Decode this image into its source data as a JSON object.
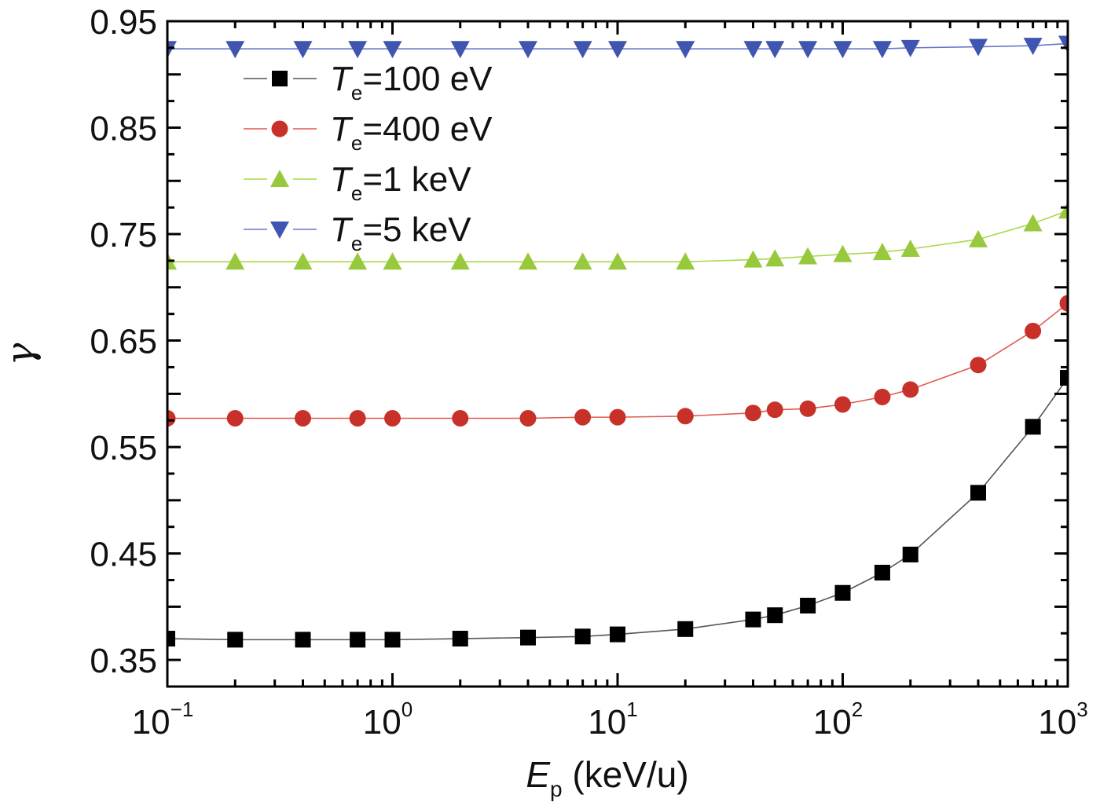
{
  "chart_data": {
    "type": "line",
    "title": "",
    "xlabel": {
      "symbol": "E",
      "subscript": "p",
      "unit": " (keV/u)"
    },
    "ylabel": "γ",
    "xscale": "log",
    "xlim": [
      0.1,
      1000
    ],
    "ylim": [
      0.325,
      0.95
    ],
    "x_ticks": [
      {
        "base": "10",
        "exp": "−1",
        "value": 0.1
      },
      {
        "base": "10",
        "exp": "0",
        "value": 1
      },
      {
        "base": "10",
        "exp": "1",
        "value": 10
      },
      {
        "base": "10",
        "exp": "2",
        "value": 100
      },
      {
        "base": "10",
        "exp": "3",
        "value": 1000
      }
    ],
    "y_ticks": [
      "0.35",
      "0.45",
      "0.55",
      "0.65",
      "0.75",
      "0.85",
      "0.95"
    ],
    "grid": false,
    "legend_position": "top-left",
    "x": [
      0.1,
      0.2,
      0.4,
      0.7,
      1,
      2,
      4,
      7,
      10,
      20,
      40,
      50,
      70,
      100,
      150,
      200,
      400,
      700,
      1000
    ],
    "series": [
      {
        "name": "Te=100 eV",
        "label_symbol": "T",
        "label_sub": "e",
        "label_rest": "=100 eV",
        "marker": "square",
        "color": "#000000",
        "line_color": "#555555",
        "values": [
          0.37,
          0.369,
          0.369,
          0.369,
          0.369,
          0.37,
          0.371,
          0.372,
          0.374,
          0.379,
          0.388,
          0.392,
          0.401,
          0.413,
          0.432,
          0.449,
          0.507,
          0.569,
          0.615
        ]
      },
      {
        "name": "Te=400 eV",
        "label_symbol": "T",
        "label_sub": "e",
        "label_rest": "=400 eV",
        "marker": "circle",
        "color": "#c8312a",
        "line_color": "#e05a50",
        "values": [
          0.577,
          0.577,
          0.577,
          0.577,
          0.577,
          0.577,
          0.577,
          0.578,
          0.578,
          0.579,
          0.582,
          0.585,
          0.586,
          0.59,
          0.597,
          0.604,
          0.627,
          0.659,
          0.685
        ]
      },
      {
        "name": "Te=1 keV",
        "label_symbol": "T",
        "label_sub": "e",
        "label_rest": "=1 keV",
        "marker": "triangle-up",
        "color": "#98c93c",
        "line_color": "#a8d84a",
        "values": [
          0.724,
          0.724,
          0.724,
          0.724,
          0.724,
          0.724,
          0.724,
          0.724,
          0.724,
          0.724,
          0.726,
          0.727,
          0.729,
          0.731,
          0.733,
          0.736,
          0.745,
          0.76,
          0.772
        ]
      },
      {
        "name": "Te=5 keV",
        "label_symbol": "T",
        "label_sub": "e",
        "label_rest": "=5 keV",
        "marker": "triangle-down",
        "color": "#3f55b0",
        "line_color": "#6677cc",
        "values": [
          0.924,
          0.924,
          0.924,
          0.924,
          0.924,
          0.924,
          0.924,
          0.924,
          0.924,
          0.924,
          0.924,
          0.924,
          0.924,
          0.924,
          0.924,
          0.925,
          0.926,
          0.927,
          0.929
        ]
      }
    ]
  }
}
